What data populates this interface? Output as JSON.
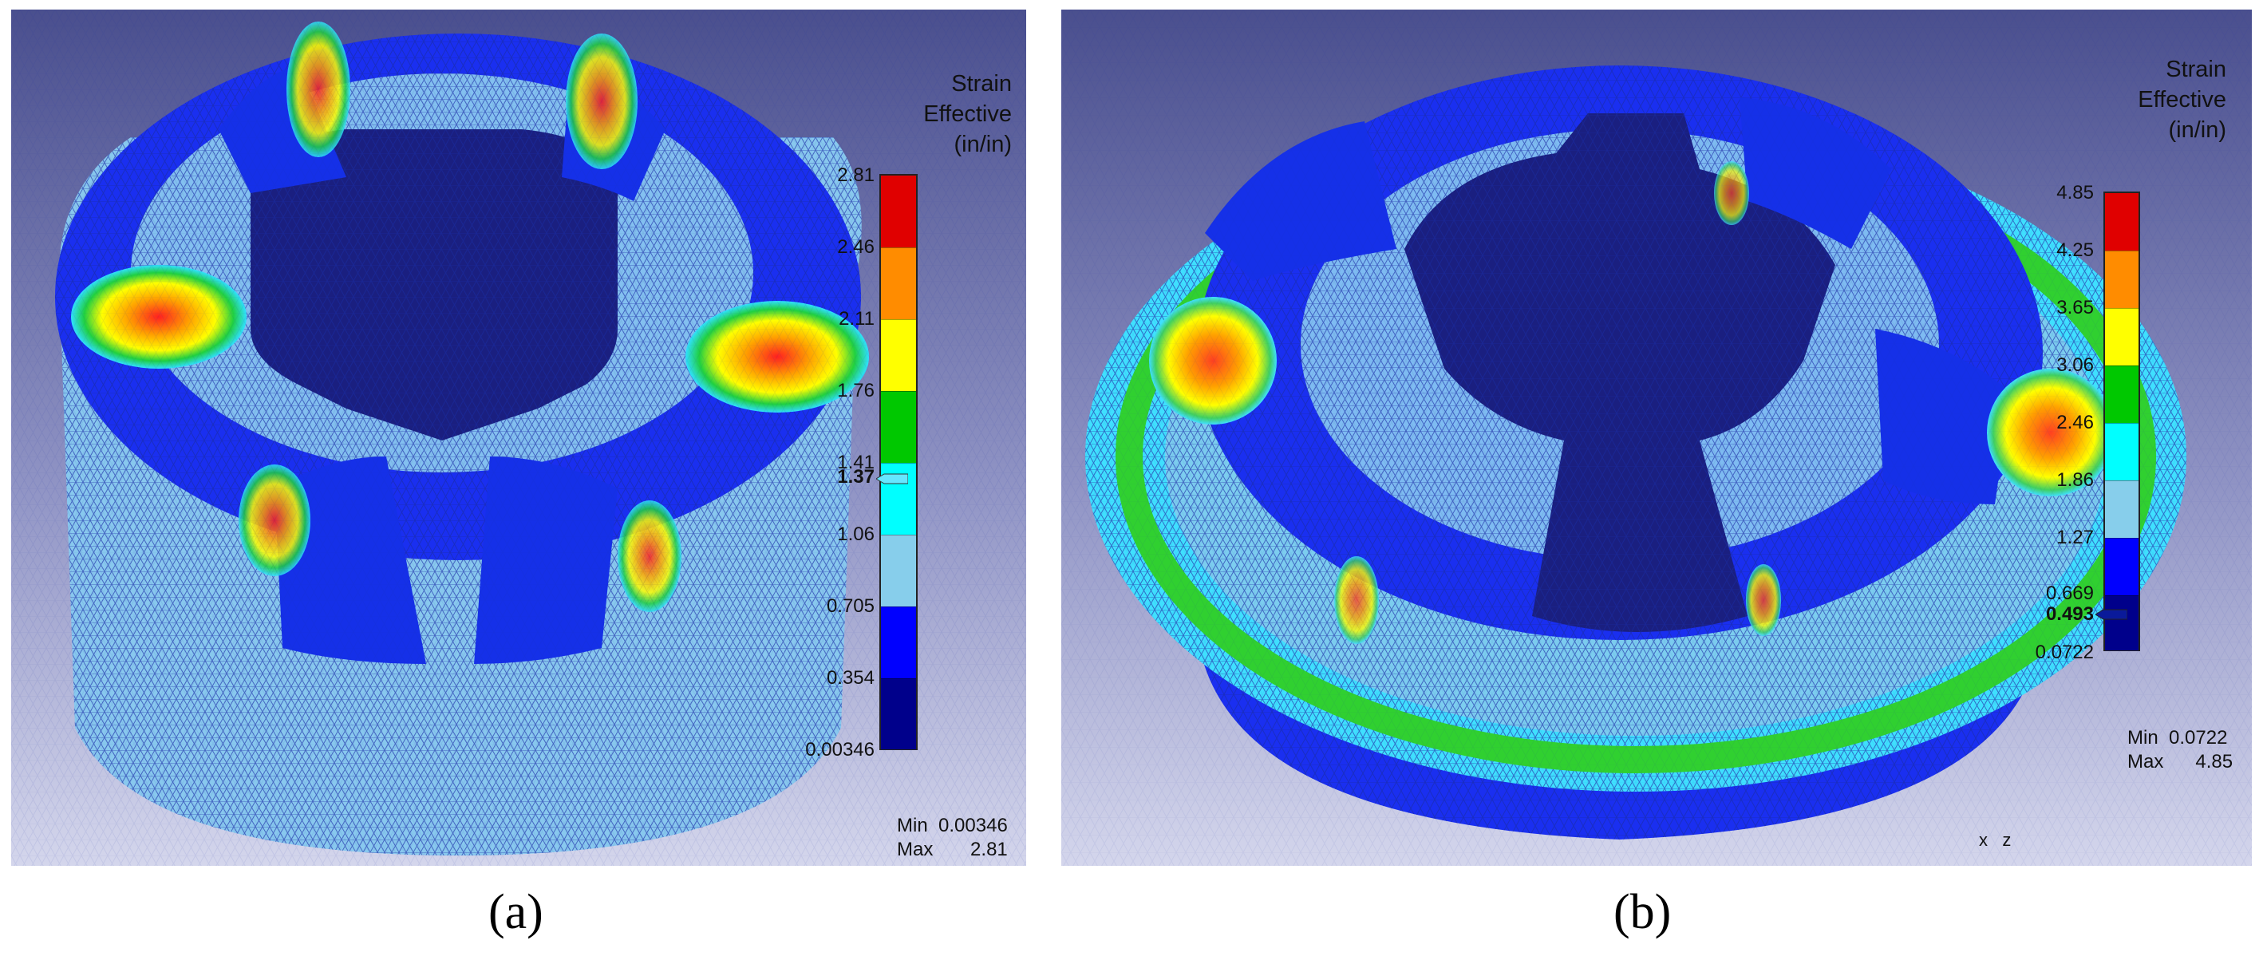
{
  "panels": [
    {
      "caption": "(a)",
      "legend": {
        "title_lines": [
          "Strain",
          "Effective",
          "(in/in)"
        ],
        "ticks": [
          "2.81",
          "2.46",
          "2.11",
          "1.76",
          "1.41",
          "1.06",
          "0.705",
          "0.354",
          "0.00346"
        ],
        "marker_value": "1.37",
        "min_label": "Min",
        "min_value": "0.00346",
        "max_label": "Max",
        "max_value": "2.81",
        "colors": [
          "#e00000",
          "#ff8c00",
          "#ffff00",
          "#00c800",
          "#00ffff",
          "#87ceeb",
          "#0000ff",
          "#00008b"
        ]
      }
    },
    {
      "caption": "(b)",
      "legend": {
        "title_lines": [
          "Strain",
          "Effective",
          "(in/in)"
        ],
        "ticks": [
          "4.85",
          "4.25",
          "3.65",
          "3.06",
          "2.46",
          "1.86",
          "1.27",
          "0.669",
          "0.0722"
        ],
        "marker_value": "0.493",
        "min_label": "Min",
        "min_value": "0.0722",
        "max_label": "Max",
        "max_value": "4.85",
        "colors": [
          "#e00000",
          "#ff8c00",
          "#ffff00",
          "#00c800",
          "#00ffff",
          "#87ceeb",
          "#0000ff",
          "#00008b"
        ],
        "axis_labels": [
          "x",
          "z"
        ]
      }
    }
  ]
}
